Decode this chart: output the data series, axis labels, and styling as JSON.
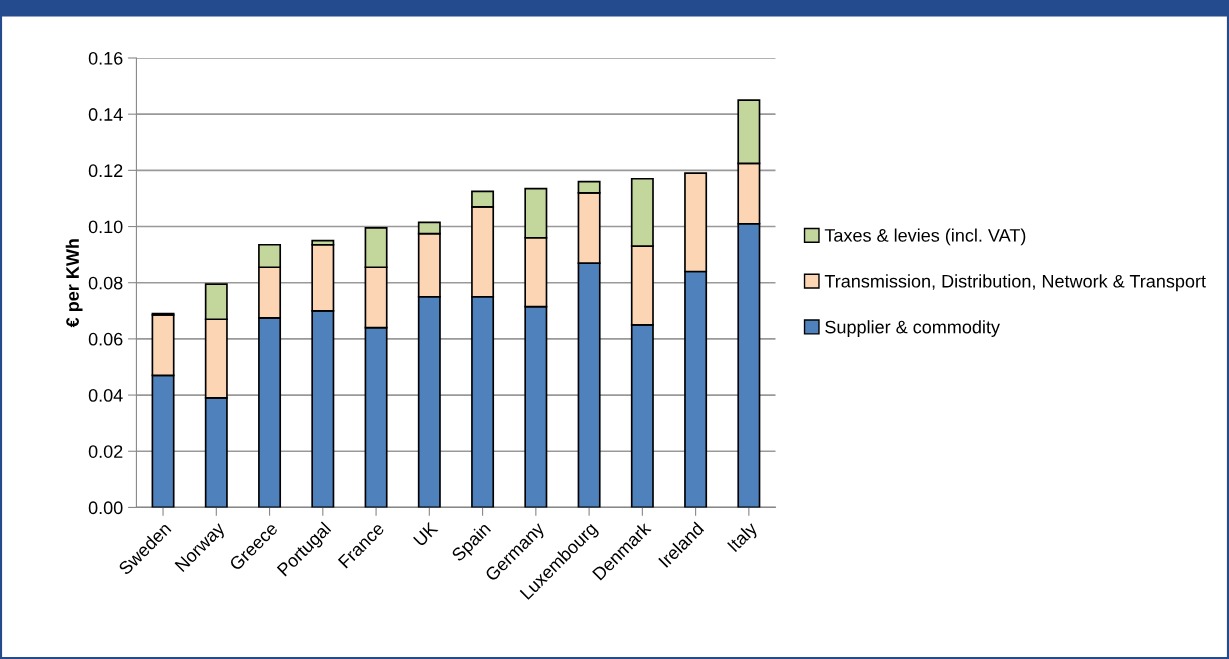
{
  "chart_data": {
    "type": "bar",
    "stacked": true,
    "ylabel": "€ per KWh",
    "categories": [
      "Sweden",
      "Norway",
      "Greece",
      "Portugal",
      "France",
      "UK",
      "Spain",
      "Germany",
      "Luxembourg",
      "Denmark",
      "Ireland",
      "Italy"
    ],
    "series": [
      {
        "name": "Supplier & commodity",
        "color": "#4f81bd",
        "values": [
          0.047,
          0.039,
          0.0675,
          0.07,
          0.064,
          0.075,
          0.075,
          0.0715,
          0.087,
          0.065,
          0.084,
          0.101
        ]
      },
      {
        "name": "Transmission, Distribution, Network & Transport",
        "color": "#fcd5b5",
        "values": [
          0.0215,
          0.028,
          0.018,
          0.0235,
          0.0215,
          0.0225,
          0.032,
          0.0245,
          0.025,
          0.028,
          0.035,
          0.0215
        ]
      },
      {
        "name": "Taxes & levies (incl. VAT)",
        "color": "#c3d69b",
        "values": [
          0.0005,
          0.0125,
          0.008,
          0.0015,
          0.014,
          0.004,
          0.0055,
          0.0175,
          0.004,
          0.024,
          null,
          0.0225
        ]
      }
    ],
    "ylim": [
      0,
      0.16
    ],
    "yticks": [
      {
        "value": 0,
        "label": "0.00"
      },
      {
        "value": 0.02,
        "label": "0.02"
      },
      {
        "value": 0.04,
        "label": "0.04"
      },
      {
        "value": 0.06,
        "label": "0.06"
      },
      {
        "value": 0.08,
        "label": "0.08"
      },
      {
        "value": 0.1,
        "label": "0.10"
      },
      {
        "value": 0.12,
        "label": "0.12"
      },
      {
        "value": 0.14,
        "label": "0.14"
      },
      {
        "value": 0.16,
        "label": "0.16"
      }
    ],
    "grid": "y",
    "legend": "right"
  }
}
